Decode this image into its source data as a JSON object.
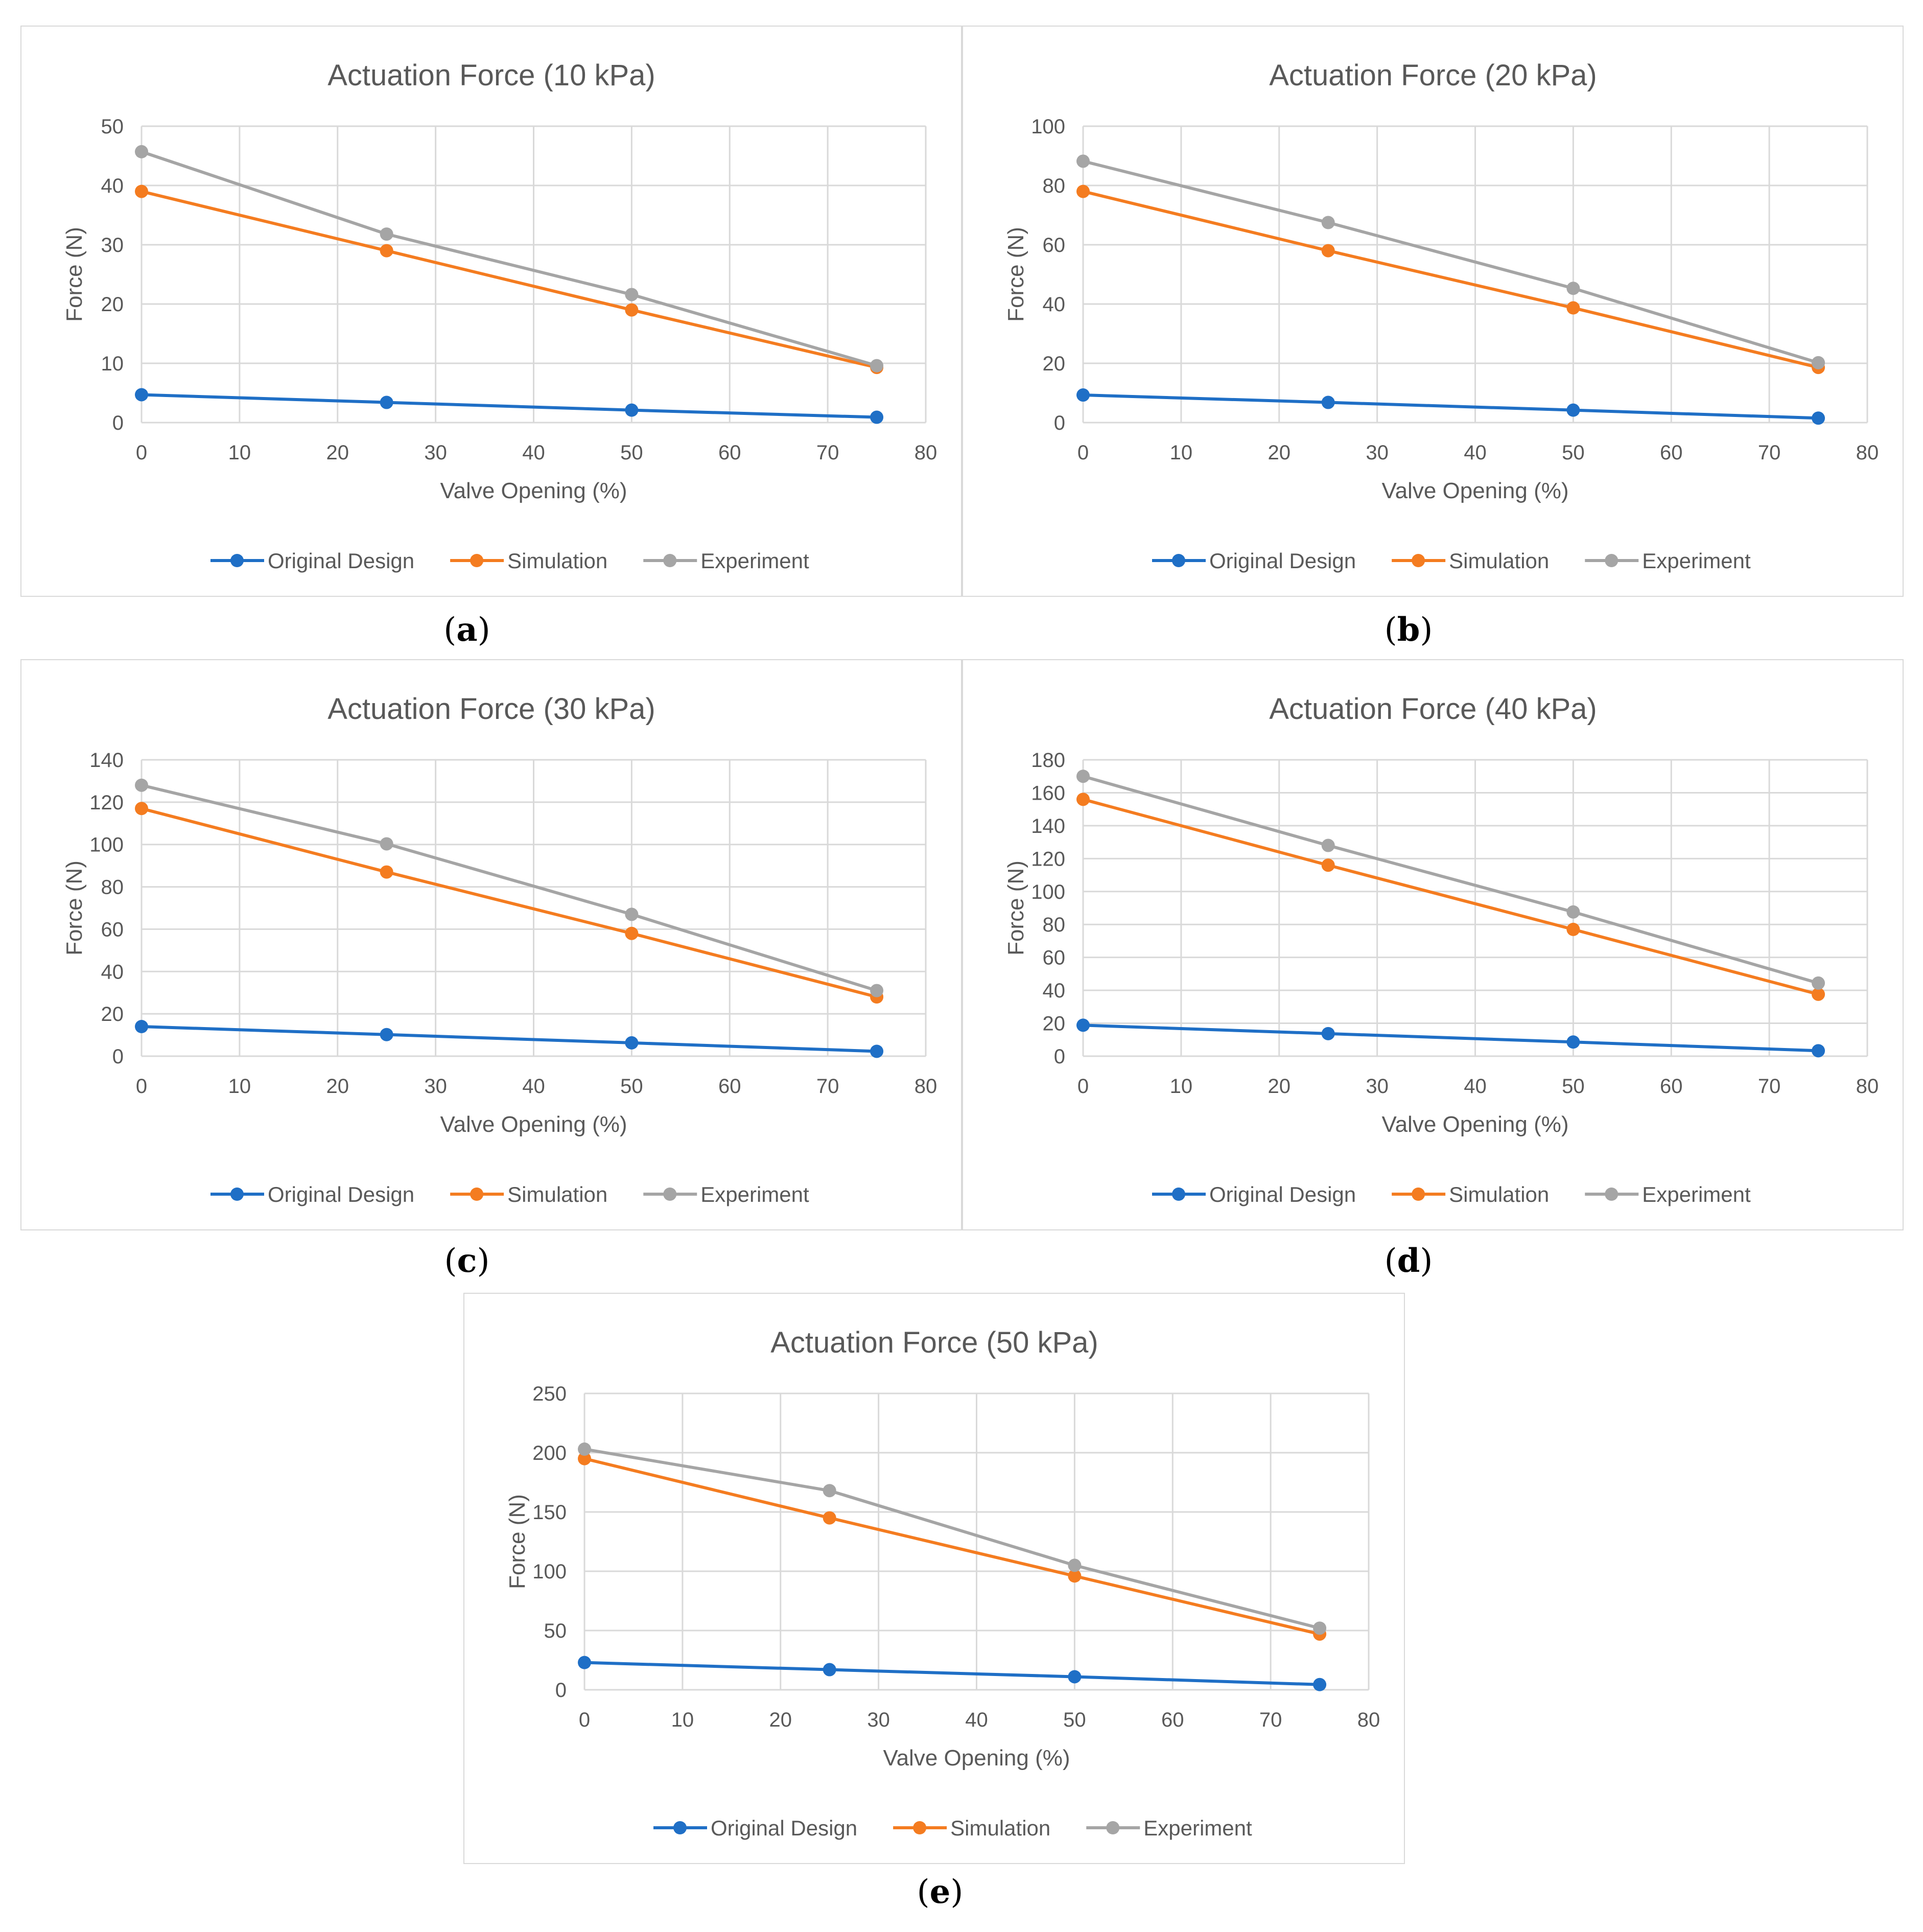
{
  "chart_data": [
    {
      "type": "line",
      "caption": "a",
      "title": "Actuation Force (10 kPa)",
      "xlabel": "Valve Opening (%)",
      "ylabel": "Force (N)",
      "xlim": [
        0,
        80
      ],
      "ylim": [
        0,
        50
      ],
      "xticks": [
        "0",
        "10",
        "20",
        "30",
        "40",
        "50",
        "60",
        "70",
        "80"
      ],
      "yticks": [
        "0",
        "10",
        "20",
        "30",
        "40",
        "50"
      ],
      "grid": true,
      "legend": "bottom",
      "x": [
        0,
        25,
        50,
        75
      ],
      "series": [
        {
          "name": "Original Design",
          "values": [
            4.7,
            3.4,
            2.1,
            0.9
          ],
          "color": "#1f6fc6"
        },
        {
          "name": "Simulation",
          "values": [
            39,
            29,
            19,
            9.3
          ],
          "color": "#f47c20"
        },
        {
          "name": "Experiment",
          "values": [
            45.7,
            31.8,
            21.6,
            9.6
          ],
          "color": "#a5a5a5"
        }
      ]
    },
    {
      "type": "line",
      "caption": "b",
      "title": "Actuation Force (20 kPa)",
      "xlabel": "Valve Opening (%)",
      "ylabel": "Force (N)",
      "xlim": [
        0,
        80
      ],
      "ylim": [
        0,
        100
      ],
      "xticks": [
        "0",
        "10",
        "20",
        "30",
        "40",
        "50",
        "60",
        "70",
        "80"
      ],
      "yticks": [
        "0",
        "20",
        "40",
        "60",
        "80",
        "100"
      ],
      "grid": true,
      "legend": "bottom",
      "x": [
        0,
        25,
        50,
        75
      ],
      "series": [
        {
          "name": "Original Design",
          "values": [
            9.3,
            6.8,
            4.2,
            1.5
          ],
          "color": "#1f6fc6"
        },
        {
          "name": "Simulation",
          "values": [
            78,
            58,
            38.7,
            18.6
          ],
          "color": "#f47c20"
        },
        {
          "name": "Experiment",
          "values": [
            88.2,
            67.5,
            45.3,
            20.2
          ],
          "color": "#a5a5a5"
        }
      ]
    },
    {
      "type": "line",
      "caption": "c",
      "title": "Actuation Force (30 kPa)",
      "xlabel": "Valve Opening (%)",
      "ylabel": "Force (N)",
      "xlim": [
        0,
        80
      ],
      "ylim": [
        0,
        140
      ],
      "xticks": [
        "0",
        "10",
        "20",
        "30",
        "40",
        "50",
        "60",
        "70",
        "80"
      ],
      "yticks": [
        "0",
        "20",
        "40",
        "60",
        "80",
        "100",
        "120",
        "140"
      ],
      "grid": true,
      "legend": "bottom",
      "x": [
        0,
        25,
        50,
        75
      ],
      "series": [
        {
          "name": "Original Design",
          "values": [
            14,
            10.2,
            6.3,
            2.3
          ],
          "color": "#1f6fc6"
        },
        {
          "name": "Simulation",
          "values": [
            117,
            87,
            58,
            28
          ],
          "color": "#f47c20"
        },
        {
          "name": "Experiment",
          "values": [
            128,
            100.3,
            67,
            31
          ],
          "color": "#a5a5a5"
        }
      ]
    },
    {
      "type": "line",
      "caption": "d",
      "title": "Actuation Force (40 kPa)",
      "xlabel": "Valve Opening (%)",
      "ylabel": "Force (N)",
      "xlim": [
        0,
        80
      ],
      "ylim": [
        0,
        180
      ],
      "xticks": [
        "0",
        "10",
        "20",
        "30",
        "40",
        "50",
        "60",
        "70",
        "80"
      ],
      "yticks": [
        "0",
        "20",
        "40",
        "60",
        "80",
        "100",
        "120",
        "140",
        "160",
        "180"
      ],
      "grid": true,
      "legend": "bottom",
      "x": [
        0,
        25,
        50,
        75
      ],
      "series": [
        {
          "name": "Original Design",
          "values": [
            18.8,
            13.7,
            8.6,
            3.3
          ],
          "color": "#1f6fc6"
        },
        {
          "name": "Simulation",
          "values": [
            156,
            116,
            77,
            37.6
          ],
          "color": "#f47c20"
        },
        {
          "name": "Experiment",
          "values": [
            170,
            128,
            87.6,
            44.4
          ],
          "color": "#a5a5a5"
        }
      ]
    },
    {
      "type": "line",
      "caption": "e",
      "title": "Actuation Force (50 kPa)",
      "xlabel": "Valve Opening (%)",
      "ylabel": "Force (N)",
      "xlim": [
        0,
        80
      ],
      "ylim": [
        0,
        250
      ],
      "xticks": [
        "0",
        "10",
        "20",
        "30",
        "40",
        "50",
        "60",
        "70",
        "80"
      ],
      "yticks": [
        "0",
        "50",
        "100",
        "150",
        "200",
        "250"
      ],
      "grid": true,
      "legend": "bottom",
      "x": [
        0,
        25,
        50,
        75
      ],
      "series": [
        {
          "name": "Original Design",
          "values": [
            23,
            17,
            11,
            4.4
          ],
          "color": "#1f6fc6"
        },
        {
          "name": "Simulation",
          "values": [
            195,
            145,
            96,
            47
          ],
          "color": "#f47c20"
        },
        {
          "name": "Experiment",
          "values": [
            203,
            168,
            105,
            52
          ],
          "color": "#a5a5a5"
        }
      ]
    }
  ]
}
